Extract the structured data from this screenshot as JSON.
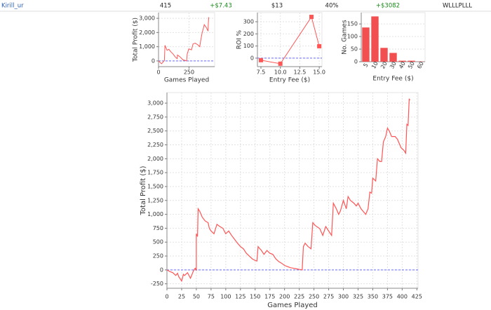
{
  "row": {
    "player": "Kirill_ur",
    "games": "415",
    "avg_profit": "+$7.43",
    "avg_stake": "$13",
    "roi": "40%",
    "total_profit": "+$3082",
    "streak": "WLLLPLLL"
  },
  "chart_data": [
    {
      "type": "line",
      "xlabel": "Games Played",
      "ylabel": "Total Profit ($)",
      "grid": true,
      "baseline": 0,
      "xlim": [
        0,
        460
      ],
      "ylim": [
        -400,
        3400
      ],
      "xticks": [
        0,
        250
      ],
      "yticks": [
        0,
        {
          "value": 1000,
          "label": "1,000"
        },
        {
          "value": 2000,
          "label": "2,000"
        },
        {
          "value": 3000,
          "label": "3,000"
        }
      ],
      "x": [
        0,
        25,
        48,
        53,
        70,
        85,
        100,
        120,
        140,
        153,
        155,
        175,
        200,
        230,
        235,
        248,
        270,
        283,
        300,
        320,
        338,
        345,
        358,
        368,
        375,
        392,
        406,
        408,
        412
      ],
      "series": [
        {
          "name": "Total Profit",
          "color": "#ff5555",
          "values": [
            0,
            -200,
            30,
            1100,
            750,
            820,
            650,
            480,
            250,
            160,
            420,
            300,
            80,
            0,
            480,
            850,
            780,
            1200,
            1250,
            1150,
            1000,
            1400,
            2000,
            2300,
            2550,
            2350,
            2100,
            2620,
            3080
          ]
        }
      ]
    },
    {
      "type": "line",
      "markers": true,
      "xlabel": "Entry Fee ($)",
      "ylabel": "ROI %",
      "grid": true,
      "baseline": 0,
      "xlim": [
        7.05,
        15.35
      ],
      "ylim": [
        -70,
        375
      ],
      "xticks": [
        7.5,
        {
          "value": 10,
          "label": "10.0"
        },
        12.5,
        {
          "value": 15,
          "label": "15.0"
        }
      ],
      "yticks": [
        0,
        100,
        200,
        300
      ],
      "x": [
        7.5,
        10,
        14,
        15
      ],
      "series": [
        {
          "name": "ROI",
          "color": "#ff5555",
          "values": [
            -17,
            -46,
            340,
            98
          ]
        }
      ]
    },
    {
      "type": "bar",
      "xlabel": "Entry Fee ($)",
      "ylabel": "No. Games",
      "grid": true,
      "color": "#f25050",
      "ylim": [
        0,
        195
      ],
      "yticks": [
        0,
        50,
        100,
        150
      ],
      "categories": [
        "5",
        "10",
        "20",
        "30",
        "40",
        "50",
        "60"
      ],
      "values": [
        136,
        180,
        55,
        35,
        4,
        4,
        1
      ]
    },
    {
      "type": "line",
      "xlabel": "Games Played",
      "ylabel": "Total Profit ($)",
      "grid": true,
      "baseline": 0,
      "xlim": [
        0,
        427
      ],
      "ylim": [
        -330,
        3190
      ],
      "xticks": [
        0,
        25,
        50,
        75,
        100,
        125,
        150,
        175,
        200,
        225,
        250,
        275,
        300,
        325,
        350,
        375,
        400,
        425
      ],
      "yticks": [
        -250,
        0,
        250,
        500,
        750,
        {
          "value": 1000,
          "label": "1,000"
        },
        {
          "value": 1250,
          "label": "1,250"
        },
        {
          "value": 1500,
          "label": "1,500"
        },
        {
          "value": 1750,
          "label": "1,750"
        },
        {
          "value": 2000,
          "label": "2,000"
        },
        {
          "value": 2250,
          "label": "2,250"
        },
        {
          "value": 2500,
          "label": "2,500"
        },
        {
          "value": 2750,
          "label": "2,750"
        },
        {
          "value": 3000,
          "label": "3,000"
        }
      ],
      "x": [
        0,
        5,
        10,
        15,
        18,
        20,
        25,
        28,
        30,
        35,
        40,
        45,
        48,
        50,
        50,
        52,
        53,
        56,
        60,
        65,
        70,
        72,
        75,
        80,
        85,
        90,
        95,
        100,
        105,
        110,
        115,
        120,
        125,
        130,
        135,
        140,
        145,
        150,
        153,
        155,
        158,
        160,
        165,
        170,
        175,
        180,
        185,
        190,
        195,
        200,
        205,
        210,
        215,
        220,
        225,
        230,
        232,
        235,
        240,
        245,
        248,
        252,
        260,
        265,
        270,
        275,
        280,
        283,
        288,
        292,
        295,
        300,
        305,
        308,
        312,
        318,
        322,
        325,
        330,
        338,
        342,
        345,
        348,
        350,
        355,
        358,
        362,
        365,
        368,
        372,
        375,
        378,
        382,
        388,
        392,
        398,
        403,
        406,
        408,
        410,
        412,
        413
      ],
      "series": [
        {
          "name": "Total Profit",
          "color": "#ff5555",
          "values": [
            0,
            -30,
            -50,
            -100,
            -60,
            -120,
            -200,
            -80,
            -100,
            -50,
            -150,
            -20,
            30,
            0,
            650,
            600,
            1100,
            1050,
            950,
            880,
            850,
            750,
            700,
            650,
            820,
            780,
            750,
            650,
            700,
            620,
            550,
            480,
            420,
            380,
            300,
            250,
            200,
            170,
            160,
            420,
            380,
            360,
            280,
            350,
            300,
            280,
            200,
            150,
            120,
            80,
            60,
            40,
            30,
            20,
            10,
            0,
            420,
            480,
            420,
            380,
            850,
            800,
            740,
            620,
            780,
            700,
            620,
            1200,
            1100,
            1000,
            1060,
            1250,
            1100,
            1320,
            1250,
            1200,
            1150,
            1200,
            1100,
            1000,
            1100,
            1400,
            1380,
            1650,
            1600,
            2000,
            1950,
            1950,
            2300,
            2400,
            2550,
            2500,
            2400,
            2400,
            2350,
            2200,
            2150,
            2100,
            2620,
            2600,
            3080,
            3050
          ]
        }
      ]
    }
  ]
}
